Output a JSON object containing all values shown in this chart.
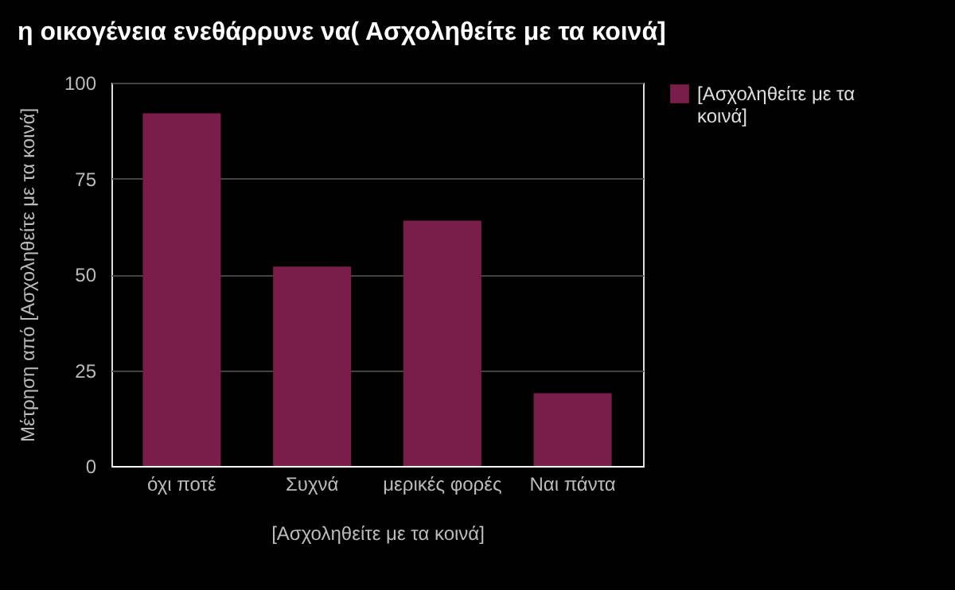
{
  "chart_data": {
    "type": "bar",
    "title": "η οικογένεια ενεθάρρυνε να( Ασχοληθείτε με τα κοινά]",
    "xlabel": "[Ασχοληθείτε με τα κοινά]",
    "ylabel": "Μέτρηση από  [Ασχοληθείτε με τα κοινά]",
    "categories": [
      "όχι ποτέ",
      "Συχνά",
      "μερικές φορές",
      "Ναι πάντα"
    ],
    "series": [
      {
        "name": "[Ασχοληθείτε με τα κοινά]",
        "color": "#7b1d4a",
        "values": [
          92,
          52,
          64,
          19
        ]
      }
    ],
    "ylim": [
      0,
      100
    ],
    "yticks": [
      0,
      25,
      50,
      75,
      100
    ],
    "grid": "y",
    "legend": "top right"
  }
}
